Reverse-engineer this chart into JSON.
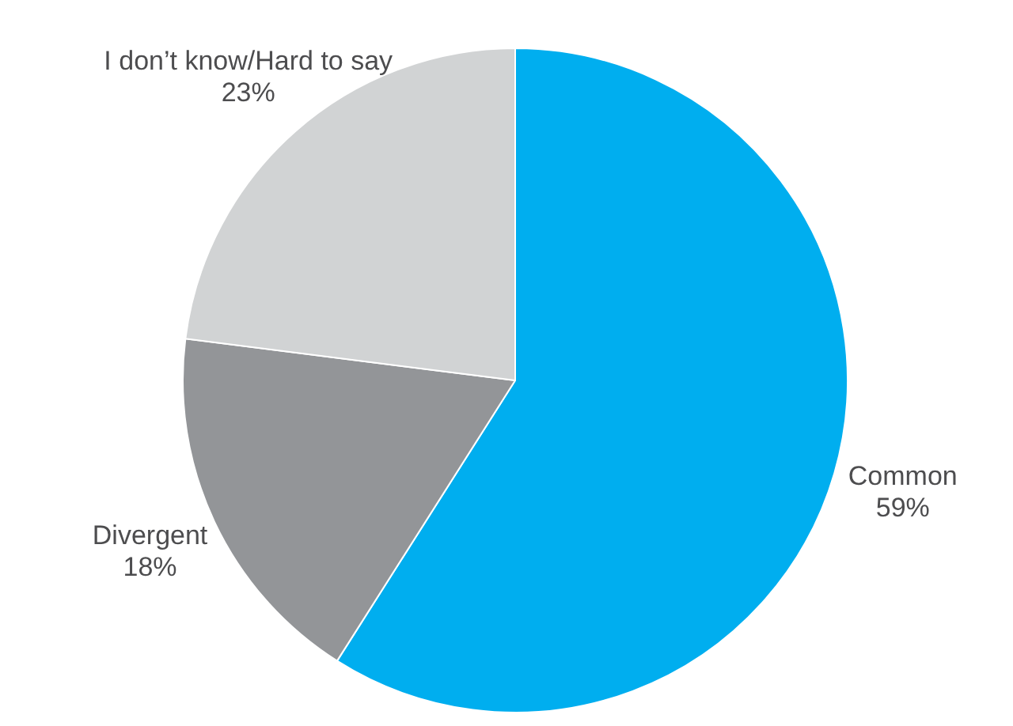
{
  "chart_data": {
    "type": "pie",
    "categories": [
      "Common",
      "Divergent",
      "I don’t know/Hard to say"
    ],
    "values": [
      59,
      18,
      23
    ],
    "colors": [
      "#00aeef",
      "#939598",
      "#d1d3d4"
    ],
    "value_labels": [
      "59%",
      "18%",
      "23%"
    ],
    "legend": false
  }
}
